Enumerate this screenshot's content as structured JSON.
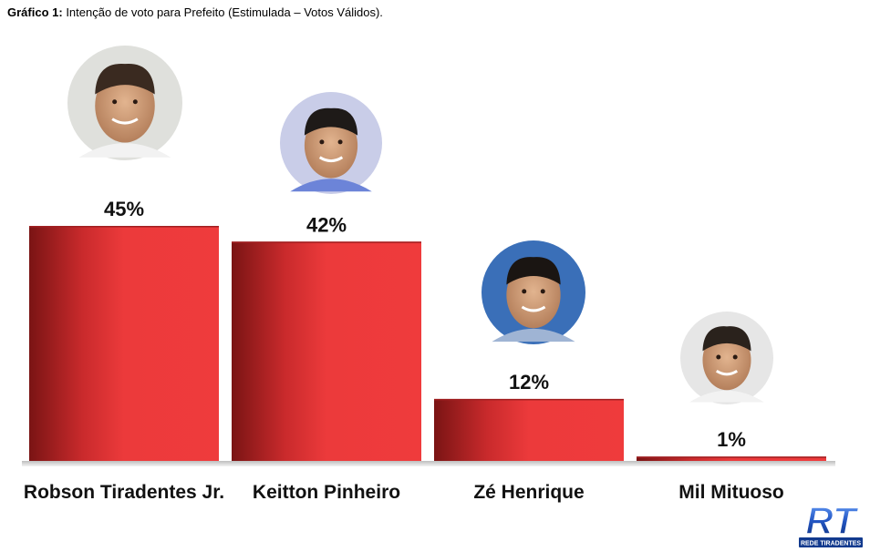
{
  "caption": {
    "prefix": "Gráfico 1:",
    "text": "Intenção de voto para Prefeito (Estimulada – Votos Válidos)."
  },
  "chart_data": {
    "type": "bar",
    "categories": [
      "Robson Tiradentes Jr.",
      "Keitton Pinheiro",
      "Zé Henrique",
      "Mil Mituoso"
    ],
    "values": [
      45,
      42,
      12,
      1
    ],
    "value_labels": [
      "45%",
      "42%",
      "12%",
      "1%"
    ],
    "ylim": [
      0,
      50
    ],
    "grid": false,
    "bar_color": "#e8383a",
    "bar_shade_color": "#8e1818"
  },
  "logo": {
    "text": "RT",
    "subtext": "REDE TIRADENTES",
    "color": "#1f4fa8"
  }
}
